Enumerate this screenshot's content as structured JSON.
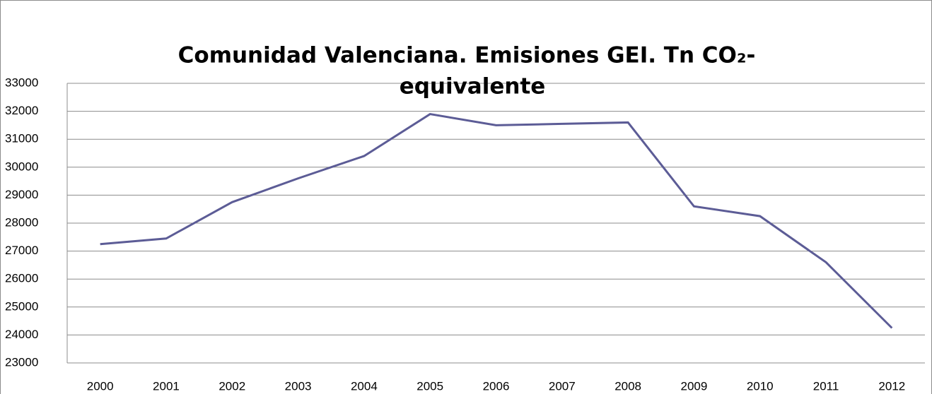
{
  "chart_data": {
    "type": "line",
    "title_lines": [
      "Comunidad Valenciana. Emisiones GEI. Tn CO₂-",
      "equivalente"
    ],
    "categories": [
      "2000",
      "2001",
      "2002",
      "2003",
      "2004",
      "2005",
      "2006",
      "2007",
      "2008",
      "2009",
      "2010",
      "2011",
      "2012"
    ],
    "series": [
      {
        "color": "#5c5c96",
        "values": [
          27250,
          27450,
          28750,
          29600,
          30400,
          31900,
          31500,
          31550,
          31600,
          28600,
          28250,
          26600,
          24250
        ]
      }
    ],
    "ylim": [
      23000,
      33000
    ],
    "yticks": [
      23000,
      24000,
      25000,
      26000,
      27000,
      28000,
      29000,
      30000,
      31000,
      32000,
      33000
    ],
    "grid": true
  }
}
